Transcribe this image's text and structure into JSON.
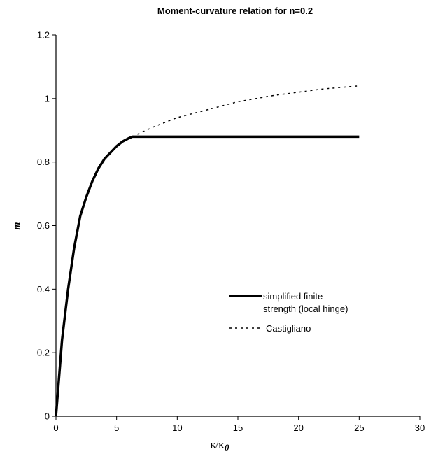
{
  "chart_data": {
    "type": "line",
    "title": "Moment-curvature relation for n=0.2",
    "ylabel": "m",
    "xlabel_main": "κ/κ",
    "xlabel_sub": "0",
    "xlim": [
      0,
      30
    ],
    "ylim": [
      0,
      1.2
    ],
    "x_ticks": [
      0,
      5,
      10,
      15,
      20,
      25,
      30
    ],
    "x_tick_labels": [
      "0",
      "5",
      "10",
      "15",
      "20",
      "25",
      "30"
    ],
    "y_ticks": [
      0,
      0.2,
      0.4,
      0.6,
      0.8,
      1.0,
      1.2
    ],
    "y_tick_labels": [
      "0",
      "0.2",
      "0.4",
      "0.6",
      "0.8",
      "1",
      "1.2"
    ],
    "grid": false,
    "legend_position": "lower-right",
    "series": [
      {
        "name": "simplified finite strength (local hinge)",
        "style": "solid-thick",
        "color": "#000000",
        "x": [
          0,
          0.5,
          1,
          1.5,
          2,
          2.5,
          3,
          3.5,
          4,
          4.5,
          5,
          5.5,
          6,
          6.3,
          10,
          15,
          20,
          25
        ],
        "y": [
          0,
          0.24,
          0.4,
          0.53,
          0.63,
          0.69,
          0.74,
          0.78,
          0.81,
          0.83,
          0.85,
          0.865,
          0.875,
          0.88,
          0.88,
          0.88,
          0.88,
          0.88
        ]
      },
      {
        "name": "Castigliano",
        "style": "dashed",
        "color": "#000000",
        "x": [
          6.3,
          8,
          10,
          12,
          15,
          18,
          20,
          22,
          25
        ],
        "y": [
          0.88,
          0.91,
          0.94,
          0.96,
          0.99,
          1.01,
          1.02,
          1.03,
          1.04
        ]
      }
    ]
  }
}
